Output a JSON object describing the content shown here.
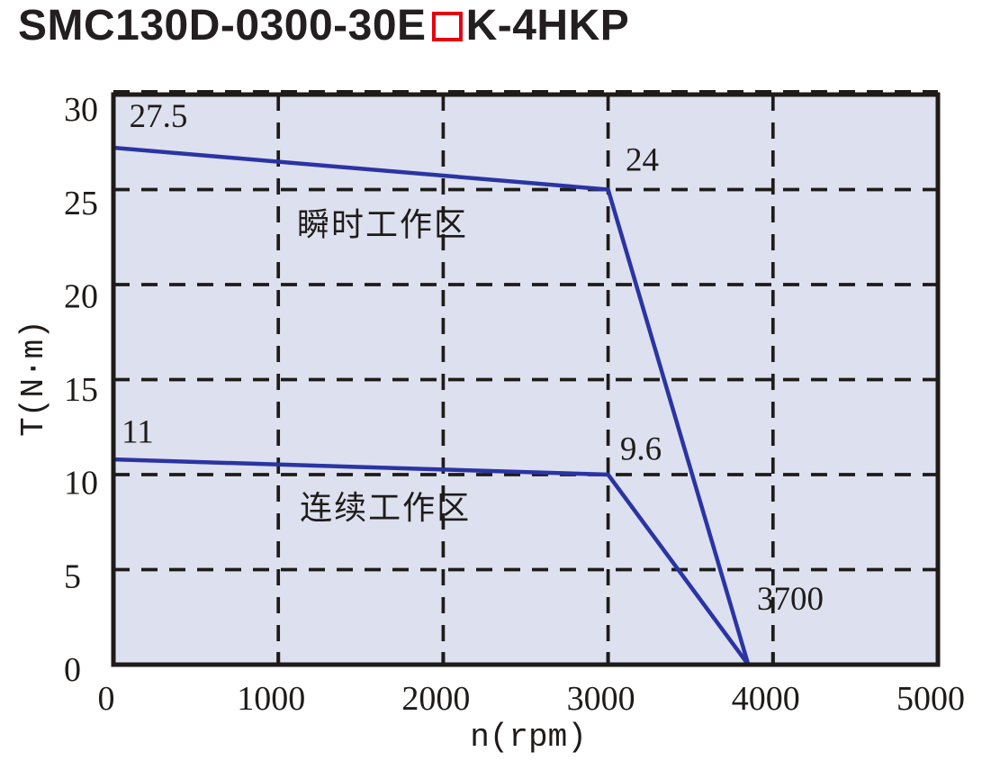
{
  "title": {
    "prefix": "SMC130D-0300-30E",
    "box": "□",
    "suffix": "K-4HKP"
  },
  "colors": {
    "page_bg": "#ffffff",
    "plot_bg": "#dde0ee",
    "curve": "#2b34a3",
    "ink": "#1e1b19",
    "title_ink": "#231f20",
    "red_box": "#e60012"
  },
  "chart_data": {
    "type": "line",
    "title": "SMC130D-0300-30E□K-4HKP",
    "xlabel": "n(rpm)",
    "ylabel": "T(N·m)",
    "xlim": [
      0,
      5000
    ],
    "ylim": [
      0,
      30
    ],
    "xticks": [
      0,
      1000,
      2000,
      3000,
      4000,
      5000
    ],
    "yticks": [
      0,
      5,
      10,
      15,
      20,
      25,
      30
    ],
    "grid": "dashed",
    "legend": "none",
    "series": [
      {
        "name": "瞬时工作区",
        "values": [
          [
            0,
            27.5
          ],
          [
            3000,
            24
          ],
          [
            3700,
            0
          ]
        ],
        "render_points": [
          [
            0,
            27.2
          ],
          [
            3000,
            25
          ],
          [
            3850,
            0
          ]
        ]
      },
      {
        "name": "连续工作区",
        "values": [
          [
            0,
            11
          ],
          [
            3000,
            9.6
          ],
          [
            3700,
            0
          ]
        ],
        "render_points": [
          [
            0,
            10.8
          ],
          [
            3000,
            10
          ],
          [
            3850,
            0
          ]
        ]
      }
    ],
    "annotations": [
      {
        "text": "27.5",
        "rpm": 273,
        "t": 28.9,
        "kind": "value"
      },
      {
        "text": "24",
        "rpm": 3207,
        "t": 26.6,
        "kind": "value"
      },
      {
        "text": "瞬时工作区",
        "rpm": 1632,
        "t": 23.2,
        "kind": "region"
      },
      {
        "text": "11",
        "rpm": 147,
        "t": 12.3,
        "kind": "value"
      },
      {
        "text": "9.6",
        "rpm": 3199,
        "t": 11.4,
        "kind": "value"
      },
      {
        "text": "连续工作区",
        "rpm": 1649,
        "t": 8.3,
        "kind": "region"
      },
      {
        "text": "3700",
        "rpm": 4105,
        "t": 3.5,
        "kind": "value"
      }
    ]
  }
}
